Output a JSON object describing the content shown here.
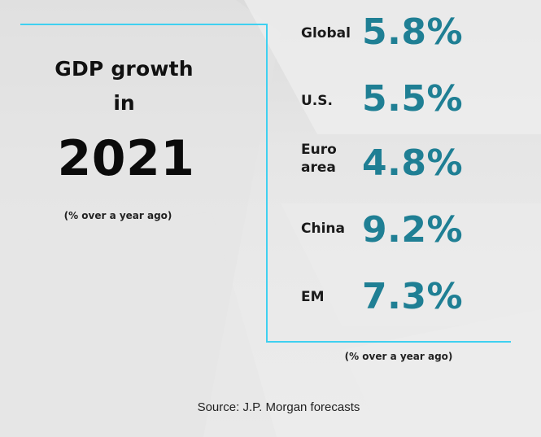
{
  "chart_data": {
    "type": "table",
    "title_line1": "GDP growth",
    "title_line2": "in",
    "title_year": "2021",
    "subtitle_left": "(% over a year ago)",
    "subtitle_right": "(% over a year ago)",
    "source": "Source: J.P. Morgan forecasts",
    "rows": [
      {
        "label": "Global",
        "value": 5.8,
        "value_label": "5.8%"
      },
      {
        "label": "U.S.",
        "value": 5.5,
        "value_label": "5.5%"
      },
      {
        "label": "Euro area",
        "value": 4.8,
        "value_label": "4.8%"
      },
      {
        "label": "China",
        "value": 9.2,
        "value_label": "9.2%"
      },
      {
        "label": "EM",
        "value": 7.3,
        "value_label": "7.3%"
      }
    ]
  },
  "colors": {
    "accent_line": "#3fd0f0",
    "value_text": "#1f7f94",
    "title_text": "#111111"
  }
}
